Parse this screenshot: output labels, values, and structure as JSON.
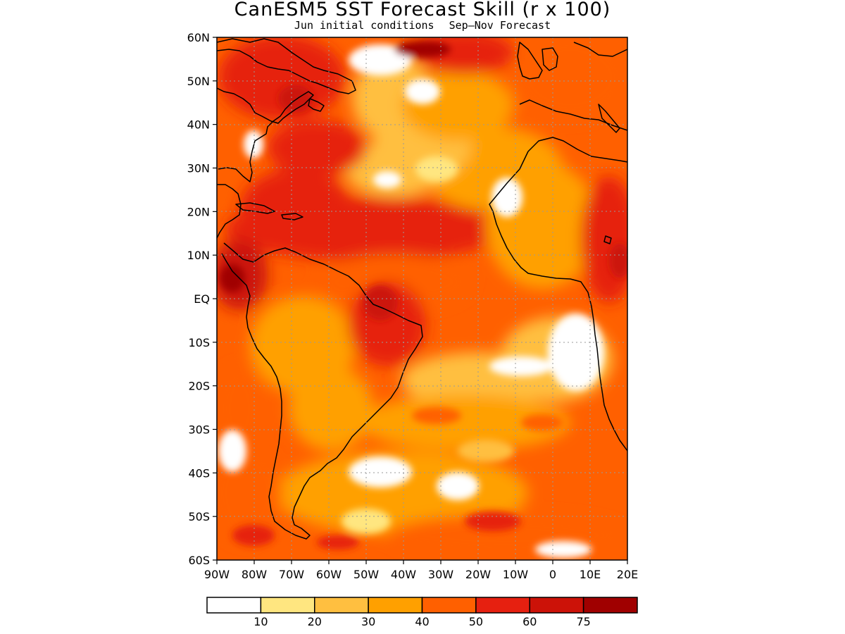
{
  "title": "CanESM5 SST Forecast Skill (r x 100)",
  "subtitle": {
    "left": "Jun initial conditions",
    "right": "Sep–Nov Forecast"
  },
  "map": {
    "lon_range": [
      -90,
      20
    ],
    "lat_range": [
      -60,
      60
    ],
    "lat_labels": [
      "60N",
      "50N",
      "40N",
      "30N",
      "20N",
      "10N",
      "EQ",
      "10S",
      "20S",
      "30S",
      "40S",
      "50S",
      "60S"
    ],
    "lon_labels": [
      "90W",
      "80W",
      "70W",
      "60W",
      "50W",
      "40W",
      "30W",
      "20W",
      "10W",
      "0",
      "10E",
      "20E"
    ],
    "grid": true
  },
  "legend": {
    "colors": [
      "#ffffff",
      "#ffe680",
      "#ffbf40",
      "#ffa000",
      "#ff6000",
      "#e62010",
      "#cc1208",
      "#a00000"
    ],
    "labels": [
      "10",
      "20",
      "30",
      "40",
      "50",
      "60",
      "75"
    ]
  }
}
